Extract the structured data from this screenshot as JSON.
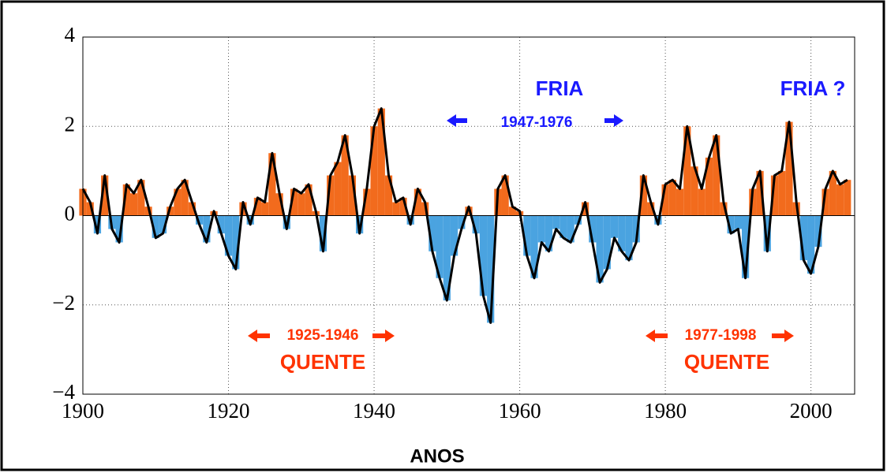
{
  "chart_data": {
    "type": "bar",
    "xlabel": "ANOS",
    "x": [
      1900,
      1901,
      1902,
      1903,
      1904,
      1905,
      1906,
      1907,
      1908,
      1909,
      1910,
      1911,
      1912,
      1913,
      1914,
      1915,
      1916,
      1917,
      1918,
      1919,
      1920,
      1921,
      1922,
      1923,
      1924,
      1925,
      1926,
      1927,
      1928,
      1929,
      1930,
      1931,
      1932,
      1933,
      1934,
      1935,
      1936,
      1937,
      1938,
      1939,
      1940,
      1941,
      1942,
      1943,
      1944,
      1945,
      1946,
      1947,
      1948,
      1949,
      1950,
      1951,
      1952,
      1953,
      1954,
      1955,
      1956,
      1957,
      1958,
      1959,
      1960,
      1961,
      1962,
      1963,
      1964,
      1965,
      1966,
      1967,
      1968,
      1969,
      1970,
      1971,
      1972,
      1973,
      1974,
      1975,
      1976,
      1977,
      1978,
      1979,
      1980,
      1981,
      1982,
      1983,
      1984,
      1985,
      1986,
      1987,
      1988,
      1989,
      1990,
      1991,
      1992,
      1993,
      1994,
      1995,
      1996,
      1997,
      1998,
      1999,
      2000,
      2001,
      2002,
      2003,
      2004,
      2005
    ],
    "values": [
      0.6,
      0.3,
      -0.4,
      0.9,
      -0.3,
      -0.6,
      0.7,
      0.5,
      0.8,
      0.2,
      -0.5,
      -0.4,
      0.2,
      0.6,
      0.8,
      0.3,
      -0.2,
      -0.6,
      0.1,
      -0.4,
      -0.9,
      -1.2,
      0.3,
      -0.2,
      0.4,
      0.3,
      1.4,
      0.5,
      -0.3,
      0.6,
      0.5,
      0.7,
      0.1,
      -0.8,
      0.9,
      1.2,
      1.8,
      0.9,
      -0.4,
      0.6,
      2.0,
      2.4,
      0.9,
      0.3,
      0.4,
      -0.2,
      0.6,
      0.3,
      -0.8,
      -1.4,
      -1.9,
      -0.9,
      -0.3,
      0.2,
      -0.4,
      -1.8,
      -2.4,
      0.6,
      0.9,
      0.2,
      0.1,
      -0.9,
      -1.4,
      -0.6,
      -0.8,
      -0.3,
      -0.5,
      -0.6,
      -0.2,
      0.3,
      -0.6,
      -1.5,
      -1.2,
      -0.5,
      -0.8,
      -1.0,
      -0.6,
      0.9,
      0.3,
      -0.2,
      0.7,
      0.8,
      0.6,
      2.0,
      1.1,
      0.6,
      1.3,
      1.8,
      0.3,
      -0.4,
      -0.3,
      -1.4,
      0.6,
      1.0,
      -0.8,
      0.9,
      1.0,
      2.1,
      0.3,
      -1.0,
      -1.3,
      -0.7,
      0.6,
      1.0,
      0.7,
      0.8
    ],
    "positive_color": "#f26b1d",
    "negative_color": "#4aa3e0",
    "line_color": "#000000",
    "xlim": [
      1900,
      2006
    ],
    "xticks": [
      1900,
      1920,
      1940,
      1960,
      1980,
      2000
    ],
    "ylim": [
      -4,
      4
    ],
    "yticks": [
      {
        "value": -4,
        "label": "−4"
      },
      {
        "value": -2,
        "label": "−2"
      },
      0,
      2,
      4
    ],
    "grid": true,
    "annotations": {
      "cold": "FRIA",
      "cold_period": "1947-1976",
      "cold_now": "FRIA ?",
      "warm_period_1": "1925-1946",
      "warm_1": "QUENTE",
      "warm_period_2": "1977-1998",
      "warm_2": "QUENTE"
    }
  }
}
